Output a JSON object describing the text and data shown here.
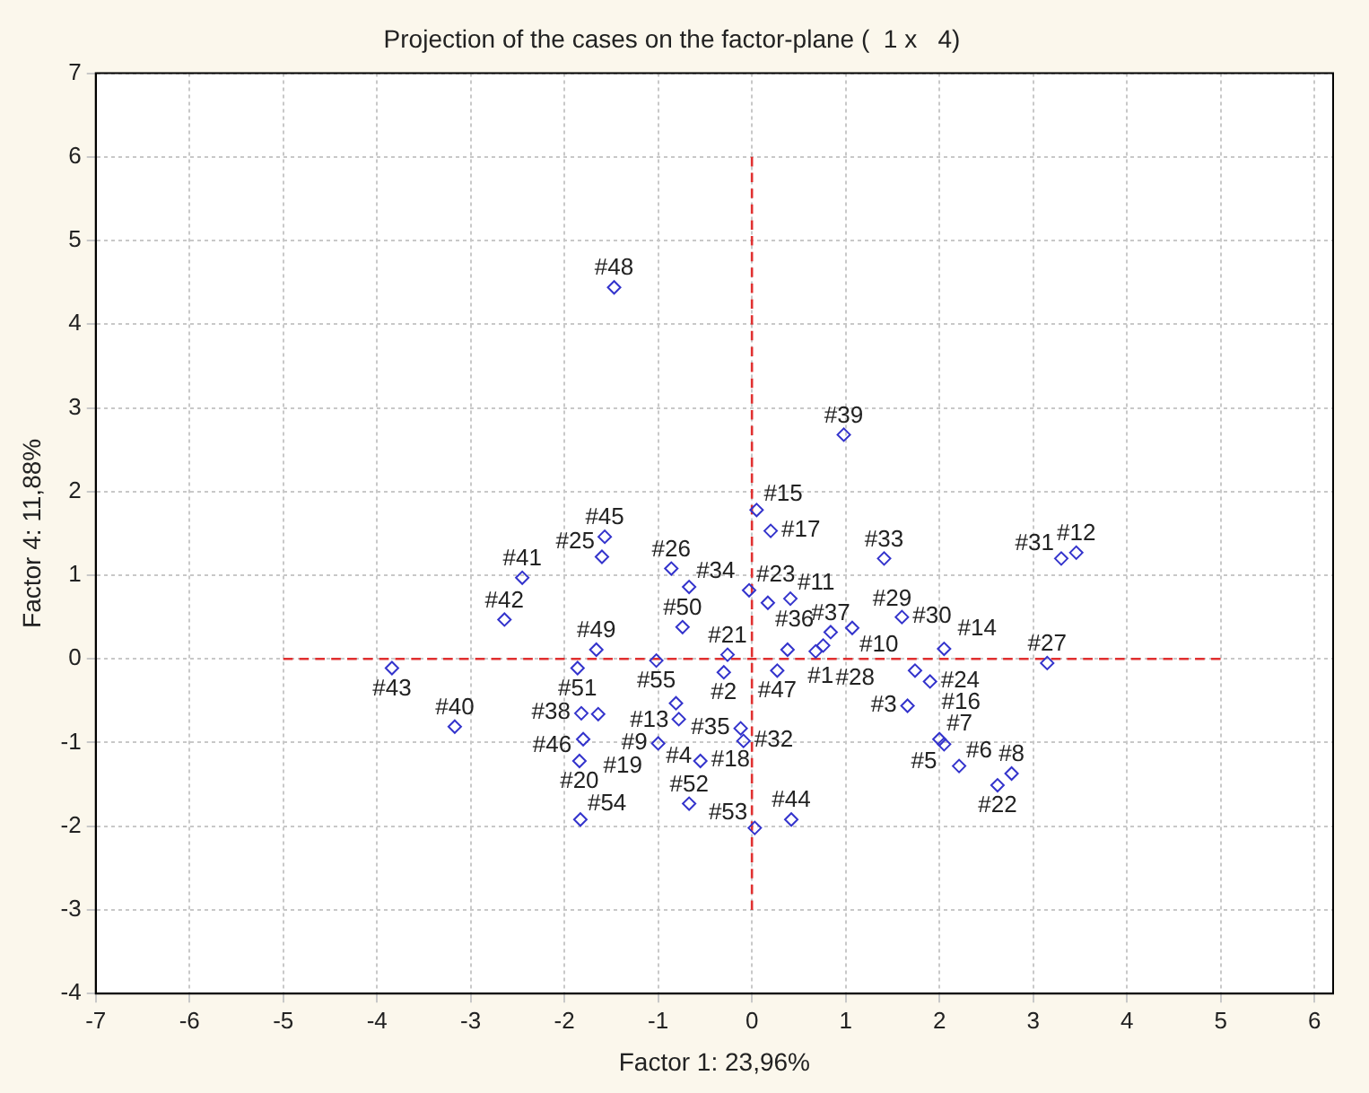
{
  "chart_data": {
    "type": "scatter",
    "title": "Projection of the cases on the factor-plane (  1 x   4)",
    "xlabel": "Factor 1: 23,96%",
    "ylabel": "Factor 4: 11,88%",
    "xlim": [
      -7,
      6.2
    ],
    "ylim": [
      -4,
      7
    ],
    "xticks": [
      -7,
      -6,
      -5,
      -4,
      -3,
      -2,
      -1,
      0,
      1,
      2,
      3,
      4,
      5,
      6
    ],
    "yticks": [
      -4,
      -3,
      -2,
      -1,
      0,
      1,
      2,
      3,
      4,
      5,
      6,
      7
    ],
    "grid": true,
    "legend": false,
    "marker": "diamond",
    "series": [
      {
        "type": "scatter",
        "color": "#3333cc",
        "x": [
          -1.47,
          0.98,
          0.05,
          0.2,
          -1.57,
          -1.6,
          -2.45,
          -2.64,
          -3.84,
          -3.17,
          -0.86,
          -0.67,
          -0.74,
          -1.66,
          -1.86,
          -1.02,
          -0.3,
          -0.26,
          0.27,
          -0.03,
          0.17,
          0.41,
          0.38,
          0.68,
          0.76,
          0.84,
          1.07,
          1.41,
          1.6,
          2.05,
          1.74,
          1.9,
          1.66,
          2.0,
          2.05,
          2.21,
          2.62,
          2.77,
          3.15,
          3.3,
          3.46,
          0.03,
          0.42,
          -0.12,
          -0.09,
          -0.81,
          -0.78,
          -1.0,
          -0.55,
          -0.67,
          -1.82,
          -1.64,
          -1.8,
          -1.84,
          -1.83
        ],
        "values": [
          4.44,
          2.68,
          1.78,
          1.53,
          1.46,
          1.22,
          0.97,
          0.47,
          -0.11,
          -0.81,
          1.08,
          0.86,
          0.38,
          0.11,
          -0.11,
          -0.02,
          -0.16,
          0.05,
          -0.14,
          0.82,
          0.67,
          0.72,
          0.11,
          0.09,
          0.16,
          0.32,
          0.37,
          1.2,
          0.5,
          0.12,
          -0.14,
          -0.27,
          -0.56,
          -0.96,
          -1.02,
          -1.28,
          -1.51,
          -1.37,
          -0.05,
          1.2,
          1.27,
          -2.02,
          -1.92,
          -0.83,
          -0.98,
          -0.53,
          -0.72,
          -1.01,
          -1.22,
          -1.73,
          -0.65,
          -0.66,
          -0.96,
          -1.22,
          -1.92
        ]
      },
      {
        "type": "line",
        "color": "#e03030",
        "line_style": "dashed",
        "marker": "none",
        "x": [
          -5,
          5
        ],
        "values": [
          0,
          0
        ]
      },
      {
        "type": "line",
        "color": "#e03030",
        "line_style": "dashed",
        "marker": "none",
        "x": [
          0,
          0
        ],
        "values": [
          -3,
          6
        ]
      }
    ],
    "annotations": [
      {
        "text": "#48",
        "x": -1.47,
        "y": 4.44
      },
      {
        "text": "#39",
        "x": 0.98,
        "y": 2.68
      },
      {
        "text": "#15",
        "x": 0.05,
        "y": 1.78
      },
      {
        "text": "#17",
        "x": 0.2,
        "y": 1.53
      },
      {
        "text": "#45",
        "x": -1.57,
        "y": 1.46
      },
      {
        "text": "#25",
        "x": -1.6,
        "y": 1.22
      },
      {
        "text": "#41",
        "x": -2.45,
        "y": 0.97
      },
      {
        "text": "#42",
        "x": -2.64,
        "y": 0.47
      },
      {
        "text": "#43",
        "x": -3.84,
        "y": -0.11
      },
      {
        "text": "#40",
        "x": -3.17,
        "y": -0.81
      },
      {
        "text": "#26",
        "x": -0.86,
        "y": 1.08
      },
      {
        "text": "#34",
        "x": -0.67,
        "y": 0.86
      },
      {
        "text": "#50",
        "x": -0.74,
        "y": 0.38
      },
      {
        "text": "#49",
        "x": -1.66,
        "y": 0.11
      },
      {
        "text": "#51",
        "x": -1.86,
        "y": -0.11
      },
      {
        "text": "#55",
        "x": -1.02,
        "y": -0.02
      },
      {
        "text": "#2",
        "x": -0.3,
        "y": -0.16
      },
      {
        "text": "#21",
        "x": -0.26,
        "y": 0.05
      },
      {
        "text": "#47",
        "x": 0.27,
        "y": -0.14
      },
      {
        "text": "#23",
        "x": -0.03,
        "y": 0.82
      },
      {
        "text": "#36",
        "x": 0.17,
        "y": 0.67
      },
      {
        "text": "#11",
        "x": 0.41,
        "y": 0.72
      },
      {
        "text": "#1",
        "x": 0.38,
        "y": 0.11
      },
      {
        "text": "#28",
        "x": 0.68,
        "y": 0.09
      },
      {
        "text": "#29",
        "x": 0.76,
        "y": 0.16
      },
      {
        "text": "#37",
        "x": 0.84,
        "y": 0.32
      },
      {
        "text": "#10",
        "x": 1.07,
        "y": 0.37
      },
      {
        "text": "#33",
        "x": 1.41,
        "y": 1.2
      },
      {
        "text": "#30",
        "x": 1.6,
        "y": 0.5
      },
      {
        "text": "#14",
        "x": 2.05,
        "y": 0.12
      },
      {
        "text": "#16",
        "x": 1.74,
        "y": -0.14
      },
      {
        "text": "#24",
        "x": 1.9,
        "y": -0.27
      },
      {
        "text": "#3",
        "x": 1.66,
        "y": -0.56
      },
      {
        "text": "#7",
        "x": 2.0,
        "y": -0.96
      },
      {
        "text": "#5",
        "x": 2.05,
        "y": -1.02
      },
      {
        "text": "#6",
        "x": 2.21,
        "y": -1.28
      },
      {
        "text": "#22",
        "x": 2.62,
        "y": -1.51
      },
      {
        "text": "#8",
        "x": 2.77,
        "y": -1.37
      },
      {
        "text": "#27",
        "x": 3.15,
        "y": -0.05
      },
      {
        "text": "#31",
        "x": 3.3,
        "y": 1.2
      },
      {
        "text": "#12",
        "x": 3.46,
        "y": 1.27
      },
      {
        "text": "#53",
        "x": 0.03,
        "y": -2.02
      },
      {
        "text": "#44",
        "x": 0.42,
        "y": -1.92
      },
      {
        "text": "#35",
        "x": -0.12,
        "y": -0.83
      },
      {
        "text": "#32",
        "x": -0.09,
        "y": -0.98
      },
      {
        "text": "#13",
        "x": -0.81,
        "y": -0.53
      },
      {
        "text": "#4",
        "x": -0.78,
        "y": -0.72
      },
      {
        "text": "#9",
        "x": -1.0,
        "y": -1.01
      },
      {
        "text": "#18",
        "x": -0.55,
        "y": -1.22
      },
      {
        "text": "#52",
        "x": -0.67,
        "y": -1.73
      },
      {
        "text": "#38",
        "x": -1.82,
        "y": -0.65
      },
      {
        "text": "#46",
        "x": -1.64,
        "y": -0.66
      },
      {
        "text": "#19",
        "x": -1.8,
        "y": -0.96
      },
      {
        "text": "#20",
        "x": -1.84,
        "y": -1.22
      },
      {
        "text": "#54",
        "x": -1.83,
        "y": -1.92
      }
    ]
  }
}
